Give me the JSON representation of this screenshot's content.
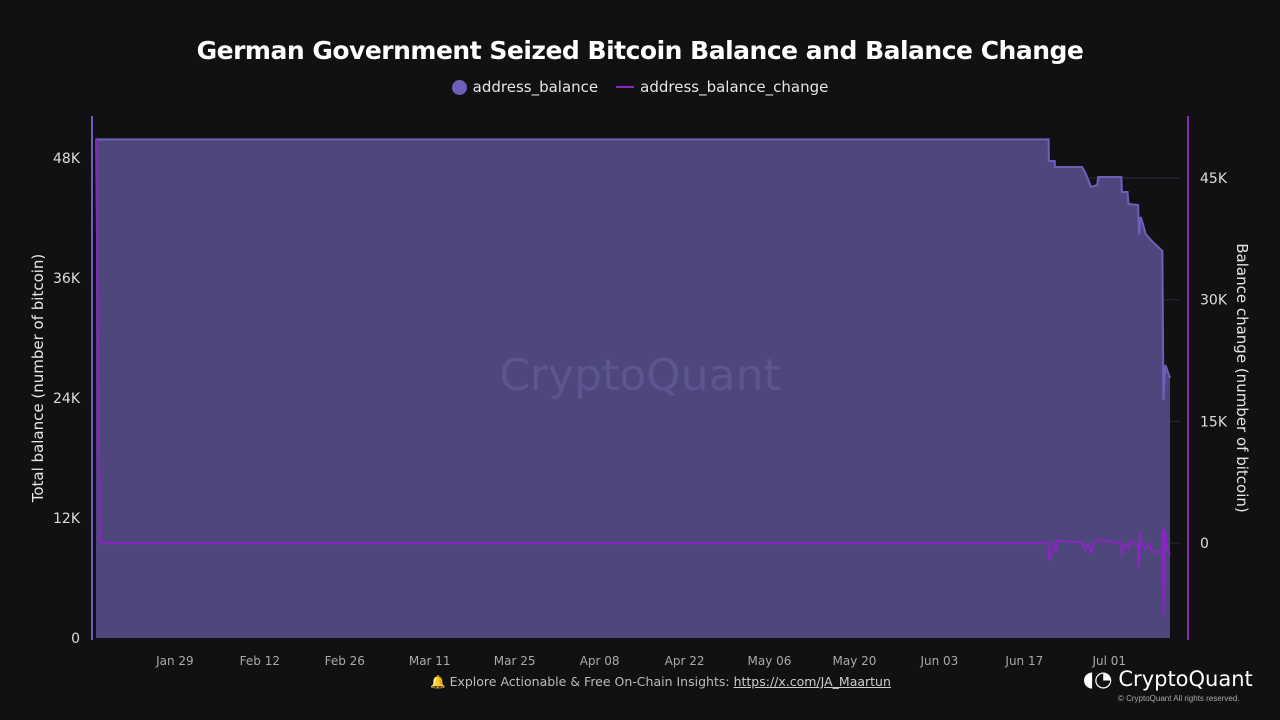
{
  "chart_data": {
    "type": "area+line",
    "title": "German Government Seized Bitcoin Balance and Balance Change",
    "legend": [
      "address_balance",
      "address_balance_change"
    ],
    "legend_placement": "top",
    "colors": {
      "address_balance": "#6f5fb8",
      "address_balance_fill": "#4e477c",
      "address_balance_change": "#8a25c4",
      "axis": "#7c2fb0"
    },
    "ylabel_left": "Total balance (number of bitcoin)",
    "ylabel_right": "Balance change (number of bitcoin)",
    "yticks_left": [
      "0",
      "12K",
      "24K",
      "36K",
      "48K"
    ],
    "yticks_right": [
      "0",
      "15K",
      "30K",
      "45K"
    ],
    "ylim_left": [
      0,
      52000
    ],
    "ylim_right": [
      -11700,
      52400
    ],
    "xlim": [
      "2024-01-16",
      "2024-07-11T12:00"
    ],
    "xticks": [
      "Jan 29",
      "Feb 12",
      "Feb 26",
      "Mar 11",
      "Mar 25",
      "Apr 08",
      "Apr 22",
      "May 06",
      "May 20",
      "Jun 03",
      "Jun 17",
      "Jul 01"
    ],
    "xtick_dates": [
      "2024-01-29",
      "2024-02-12",
      "2024-02-26",
      "2024-03-11",
      "2024-03-25",
      "2024-04-08",
      "2024-04-22",
      "2024-05-06",
      "2024-05-20",
      "2024-06-03",
      "2024-06-17",
      "2024-07-01"
    ],
    "grid": "horizontal",
    "balance": [
      [
        "2024-01-16",
        49858
      ],
      [
        "2024-06-21",
        49858
      ],
      [
        "2024-06-21T01:00",
        47700
      ],
      [
        "2024-06-22",
        47700
      ],
      [
        "2024-06-22T01:00",
        47100
      ],
      [
        "2024-06-26T12:00",
        47100
      ],
      [
        "2024-06-27",
        46600
      ],
      [
        "2024-06-28",
        45100
      ],
      [
        "2024-06-29",
        45300
      ],
      [
        "2024-06-29T04:00",
        46100
      ],
      [
        "2024-07-03",
        46100
      ],
      [
        "2024-07-03T02:00",
        44600
      ],
      [
        "2024-07-04",
        44600
      ],
      [
        "2024-07-04T04:00",
        43400
      ],
      [
        "2024-07-05T18:00",
        43300
      ],
      [
        "2024-07-05T22:00",
        40300
      ],
      [
        "2024-07-06T04:00",
        42100
      ],
      [
        "2024-07-06T12:00",
        41500
      ],
      [
        "2024-07-07",
        40400
      ],
      [
        "2024-07-08",
        39700
      ],
      [
        "2024-07-09T18:00",
        38700
      ],
      [
        "2024-07-09T22:00",
        23800
      ],
      [
        "2024-07-10T06:00",
        27300
      ],
      [
        "2024-07-11",
        26000
      ]
    ],
    "balance_change": [
      [
        "2024-01-16",
        49858
      ],
      [
        "2024-01-16T16:00",
        0
      ],
      [
        "2024-06-21",
        0
      ],
      [
        "2024-06-21T01:00",
        -2100
      ],
      [
        "2024-06-22",
        0
      ],
      [
        "2024-06-22T04:00",
        -1000
      ],
      [
        "2024-06-22T08:00",
        300
      ],
      [
        "2024-06-26T12:00",
        100
      ],
      [
        "2024-06-27",
        -800
      ],
      [
        "2024-06-27T12:00",
        -200
      ],
      [
        "2024-06-28",
        -1200
      ],
      [
        "2024-06-28T12:00",
        0
      ],
      [
        "2024-06-29T04:00",
        400
      ],
      [
        "2024-07-03",
        0
      ],
      [
        "2024-07-03T02:00",
        -1500
      ],
      [
        "2024-07-03T12:00",
        -200
      ],
      [
        "2024-07-04",
        -300
      ],
      [
        "2024-07-04T04:00",
        -600
      ],
      [
        "2024-07-04T12:00",
        200
      ],
      [
        "2024-07-05T18:00",
        -300
      ],
      [
        "2024-07-05T22:00",
        -3000
      ],
      [
        "2024-07-06T02:00",
        1400
      ],
      [
        "2024-07-06T06:00",
        -100
      ],
      [
        "2024-07-06T12:00",
        -200
      ],
      [
        "2024-07-07",
        -700
      ],
      [
        "2024-07-07T12:00",
        -100
      ],
      [
        "2024-07-08",
        -1000
      ],
      [
        "2024-07-09T18:00",
        -1200
      ],
      [
        "2024-07-09T20:00",
        2000
      ],
      [
        "2024-07-09T22:00",
        -8900
      ],
      [
        "2024-07-10T04:00",
        1500
      ],
      [
        "2024-07-10T12:00",
        -600
      ],
      [
        "2024-07-11",
        -1400
      ]
    ],
    "watermark": "CryptoQuant"
  },
  "footer": {
    "bell_icon": "bell-icon",
    "text": "Explore Actionable & Free On-Chain Insights:",
    "link": "https://x.com/JA_Maartun"
  },
  "brand": {
    "name": "CryptoQuant",
    "copyright": "© CryptoQuant All rights reserved."
  }
}
